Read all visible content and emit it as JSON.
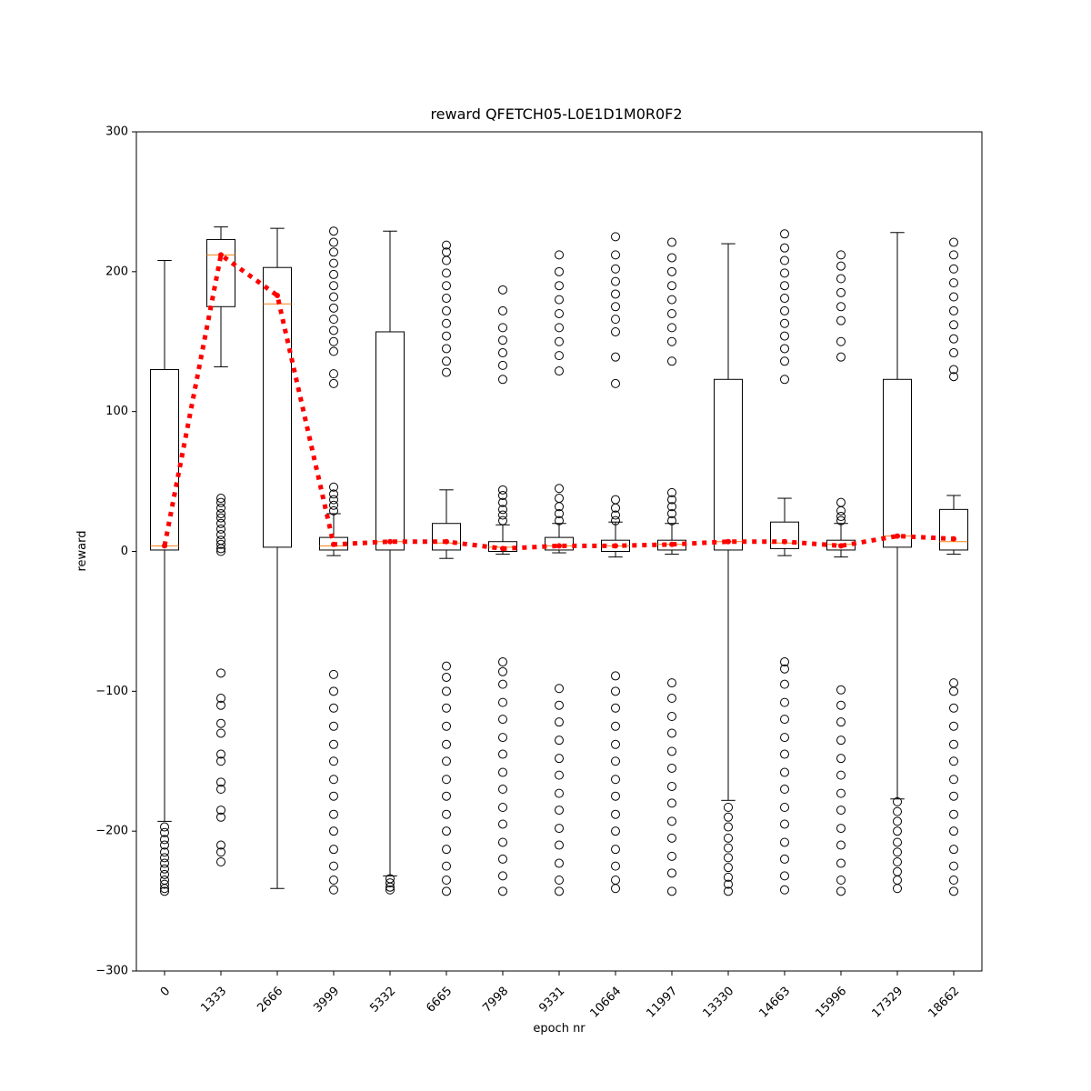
{
  "chart_data": {
    "type": "box",
    "title": "reward QFETCH05-L0E1D1M0R0F2",
    "x_label": "epoch nr",
    "y_label": "reward",
    "categories": [
      "0",
      "1333",
      "2666",
      "3999",
      "5332",
      "6665",
      "7998",
      "9331",
      "10664",
      "11997",
      "13330",
      "14663",
      "15996",
      "17329",
      "18662"
    ],
    "ylim": [
      -300,
      300
    ],
    "yticks": [
      {
        "value": -300,
        "label": "−300"
      },
      {
        "value": -200,
        "label": "−200"
      },
      {
        "value": -100,
        "label": "−100"
      },
      0,
      100,
      200,
      300
    ],
    "box_color": "#000000",
    "median_color": "#ff7f0e",
    "mean_color": "#ff0000",
    "boxes": [
      {
        "whislo": -193,
        "q1": 1,
        "med": 4,
        "q3": 130,
        "whishi": 208,
        "mean": 4,
        "fliers": [
          -197,
          -201,
          -206,
          -210,
          -215,
          -219,
          -223,
          -227,
          -231,
          -235,
          -238,
          -241,
          -243
        ]
      },
      {
        "whislo": 132,
        "q1": 175,
        "med": 212,
        "q3": 223,
        "whishi": 232,
        "mean": 212,
        "fliers": [
          38,
          35,
          31,
          27,
          24,
          20,
          16,
          12,
          8,
          5,
          2,
          0,
          -87,
          -105,
          -110,
          -123,
          -130,
          -145,
          -150,
          -165,
          -170,
          -185,
          -190,
          -210,
          -215,
          -222
        ]
      },
      {
        "whislo": -241,
        "q1": 3,
        "med": 177,
        "q3": 203,
        "whishi": 231,
        "mean": 183,
        "fliers": []
      },
      {
        "whislo": -3,
        "q1": 1,
        "med": 4,
        "q3": 10,
        "whishi": 27,
        "mean": 5,
        "fliers": [
          29,
          33,
          37,
          41,
          46,
          120,
          127,
          143,
          150,
          158,
          166,
          174,
          182,
          190,
          198,
          206,
          214,
          221,
          229,
          -88,
          -100,
          -112,
          -125,
          -138,
          -150,
          -163,
          -175,
          -188,
          -200,
          -213,
          -225,
          -235,
          -242
        ]
      },
      {
        "whislo": -232,
        "q1": 1,
        "med": 7,
        "q3": 157,
        "whishi": 229,
        "mean": 7,
        "fliers": [
          -234,
          -237,
          -240,
          -242
        ]
      },
      {
        "whislo": -5,
        "q1": 1,
        "med": 6,
        "q3": 20,
        "whishi": 44,
        "mean": 7,
        "fliers": [
          128,
          136,
          145,
          154,
          163,
          172,
          181,
          190,
          199,
          208,
          214,
          219,
          -82,
          -90,
          -100,
          -112,
          -125,
          -138,
          -150,
          -163,
          -175,
          -188,
          -200,
          -213,
          -225,
          -235,
          -243
        ]
      },
      {
        "whislo": -2,
        "q1": 0,
        "med": 3,
        "q3": 7,
        "whishi": 19,
        "mean": 2,
        "fliers": [
          22,
          26,
          30,
          35,
          40,
          44,
          123,
          133,
          142,
          151,
          160,
          172,
          187,
          -79,
          -86,
          -95,
          -108,
          -120,
          -133,
          -145,
          -158,
          -170,
          -183,
          -195,
          -208,
          -220,
          -232,
          -243
        ]
      },
      {
        "whislo": -1,
        "q1": 1,
        "med": 4,
        "q3": 10,
        "whishi": 20,
        "mean": 4,
        "fliers": [
          22,
          27,
          32,
          38,
          45,
          129,
          140,
          150,
          160,
          170,
          180,
          190,
          200,
          212,
          -98,
          -110,
          -122,
          -135,
          -148,
          -160,
          -173,
          -185,
          -198,
          -210,
          -223,
          -235,
          -243
        ]
      },
      {
        "whislo": -4,
        "q1": 0,
        "med": 4,
        "q3": 8,
        "whishi": 21,
        "mean": 4,
        "fliers": [
          22,
          26,
          31,
          37,
          120,
          139,
          157,
          166,
          175,
          184,
          193,
          202,
          212,
          225,
          -89,
          -100,
          -112,
          -125,
          -138,
          -150,
          -163,
          -175,
          -188,
          -200,
          -213,
          -225,
          -235,
          -241
        ]
      },
      {
        "whislo": -2,
        "q1": 1,
        "med": 5,
        "q3": 8,
        "whishi": 20,
        "mean": 5,
        "fliers": [
          22,
          27,
          32,
          37,
          42,
          136,
          150,
          160,
          170,
          180,
          190,
          200,
          210,
          221,
          -94,
          -105,
          -118,
          -130,
          -143,
          -155,
          -168,
          -180,
          -193,
          -205,
          -218,
          -230,
          -243
        ]
      },
      {
        "whislo": -178,
        "q1": 1,
        "med": 7,
        "q3": 123,
        "whishi": 220,
        "mean": 7,
        "fliers": [
          -183,
          -190,
          -197,
          -205,
          -212,
          -219,
          -226,
          -233,
          -238,
          -243
        ]
      },
      {
        "whislo": -3,
        "q1": 2,
        "med": 6,
        "q3": 21,
        "whishi": 38,
        "mean": 7,
        "fliers": [
          123,
          136,
          145,
          154,
          163,
          172,
          181,
          190,
          199,
          208,
          217,
          227,
          -79,
          -84,
          -95,
          -108,
          -120,
          -133,
          -145,
          -158,
          -170,
          -183,
          -195,
          -208,
          -220,
          -232,
          -242
        ]
      },
      {
        "whislo": -4,
        "q1": 1,
        "med": 5,
        "q3": 8,
        "whishi": 20,
        "mean": 4,
        "fliers": [
          22,
          25,
          29,
          35,
          139,
          150,
          165,
          175,
          185,
          195,
          204,
          212,
          -99,
          -110,
          -122,
          -135,
          -148,
          -160,
          -173,
          -185,
          -198,
          -210,
          -223,
          -235,
          -243
        ]
      },
      {
        "whislo": -177,
        "q1": 3,
        "med": 11,
        "q3": 123,
        "whishi": 228,
        "mean": 11,
        "fliers": [
          -179,
          -186,
          -193,
          -200,
          -208,
          -215,
          -222,
          -229,
          -235,
          -241
        ]
      },
      {
        "whislo": -2,
        "q1": 1,
        "med": 7,
        "q3": 30,
        "whishi": 40,
        "mean": 9,
        "fliers": [
          125,
          130,
          142,
          152,
          162,
          172,
          182,
          192,
          202,
          212,
          221,
          -94,
          -100,
          -112,
          -125,
          -138,
          -150,
          -163,
          -175,
          -188,
          -200,
          -213,
          -225,
          -235,
          -243
        ]
      }
    ]
  }
}
